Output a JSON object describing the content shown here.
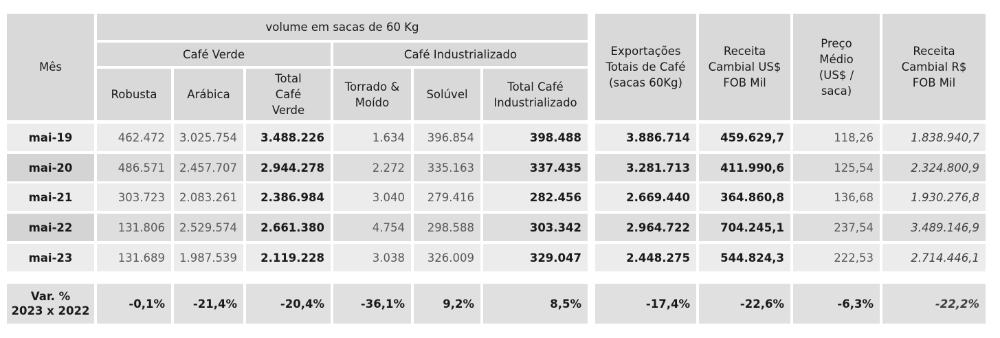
{
  "headers": {
    "month": "Mês",
    "volume_group": "volume em sacas de 60 Kg",
    "cafe_verde": "Café Verde",
    "cafe_industrializado": "Café Industrializado",
    "robusta": "Robusta",
    "arabica": "Arábica",
    "total_verde": "Total Café Verde",
    "torrado": "Torrado & Moído",
    "soluvel": "Solúvel",
    "total_industrializado": "Total Café Industrializado",
    "exportacoes": "Exportações Totais de Café (sacas 60Kg)",
    "receita_usd": "Receita Cambial US$ FOB Mil",
    "preco": "Preço Médio (US$ / saca)",
    "receita_brl": "Receita Cambial R$ FOB Mil"
  },
  "rows": [
    {
      "month": "mai-19",
      "robusta": "462.472",
      "arabica": "3.025.754",
      "total_verde": "3.488.226",
      "torrado": "1.634",
      "soluvel": "396.854",
      "total_ind": "398.488",
      "exportacoes": "3.886.714",
      "receita_usd": "459.629,7",
      "preco": "118,26",
      "receita_brl": "1.838.940,7"
    },
    {
      "month": "mai-20",
      "robusta": "486.571",
      "arabica": "2.457.707",
      "total_verde": "2.944.278",
      "torrado": "2.272",
      "soluvel": "335.163",
      "total_ind": "337.435",
      "exportacoes": "3.281.713",
      "receita_usd": "411.990,6",
      "preco": "125,54",
      "receita_brl": "2.324.800,9"
    },
    {
      "month": "mai-21",
      "robusta": "303.723",
      "arabica": "2.083.261",
      "total_verde": "2.386.984",
      "torrado": "3.040",
      "soluvel": "279.416",
      "total_ind": "282.456",
      "exportacoes": "2.669.440",
      "receita_usd": "364.860,8",
      "preco": "136,68",
      "receita_brl": "1.930.276,8"
    },
    {
      "month": "mai-22",
      "robusta": "131.806",
      "arabica": "2.529.574",
      "total_verde": "2.661.380",
      "torrado": "4.754",
      "soluvel": "298.588",
      "total_ind": "303.342",
      "exportacoes": "2.964.722",
      "receita_usd": "704.245,1",
      "preco": "237,54",
      "receita_brl": "3.489.146,9"
    },
    {
      "month": "mai-23",
      "robusta": "131.689",
      "arabica": "1.987.539",
      "total_verde": "2.119.228",
      "torrado": "3.038",
      "soluvel": "326.009",
      "total_ind": "329.047",
      "exportacoes": "2.448.275",
      "receita_usd": "544.824,3",
      "preco": "222,53",
      "receita_brl": "2.714.446,1"
    }
  ],
  "variation": {
    "label_line1": "Var. %",
    "label_line2": "2023 x 2022",
    "robusta": "-0,1%",
    "arabica": "-21,4%",
    "total_verde": "-20,4%",
    "torrado": "-36,1%",
    "soluvel": "9,2%",
    "total_ind": "8,5%",
    "exportacoes": "-17,4%",
    "receita_usd": "-22,6%",
    "preco": "-6,3%",
    "receita_brl": "-22,2%"
  }
}
